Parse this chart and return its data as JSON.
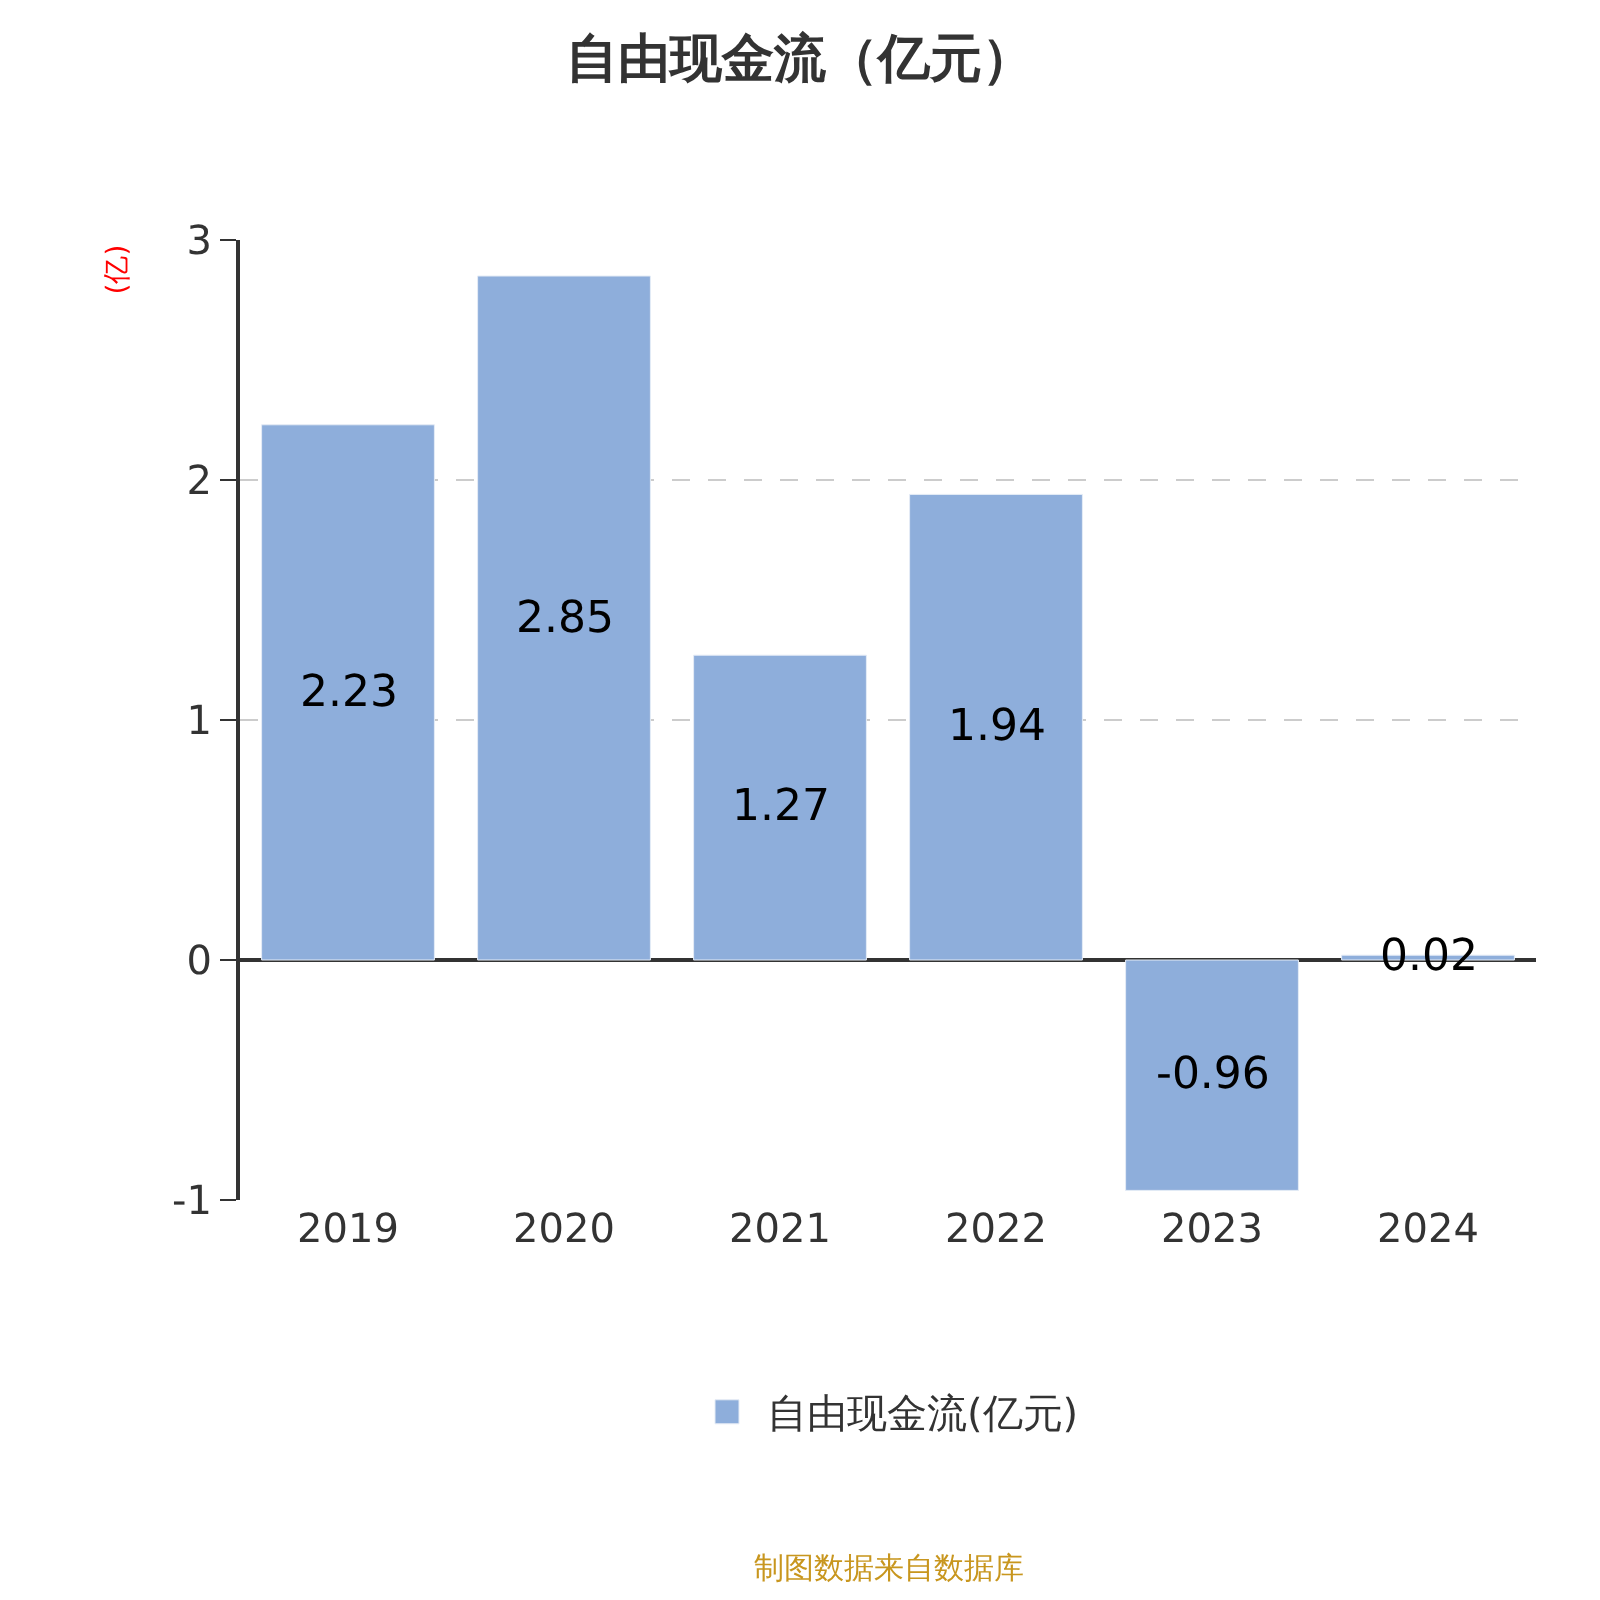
{
  "chart_data": {
    "type": "bar",
    "title": "自由现金流（亿元）",
    "ylabel": "(亿)",
    "categories": [
      "2019",
      "2020",
      "2021",
      "2022",
      "2023",
      "2024"
    ],
    "series": [
      {
        "name": "自由现金流(亿元)",
        "color": "#8eaedb",
        "values": [
          2.23,
          2.85,
          1.27,
          1.94,
          -0.96,
          0.02
        ]
      }
    ],
    "ylim": [
      -1,
      3
    ],
    "yticks": [
      -1,
      0,
      1,
      2,
      3
    ],
    "grid": "y",
    "legend": "bottom",
    "data_labels": true,
    "annotations": [
      "制图数据来自数据库"
    ]
  }
}
